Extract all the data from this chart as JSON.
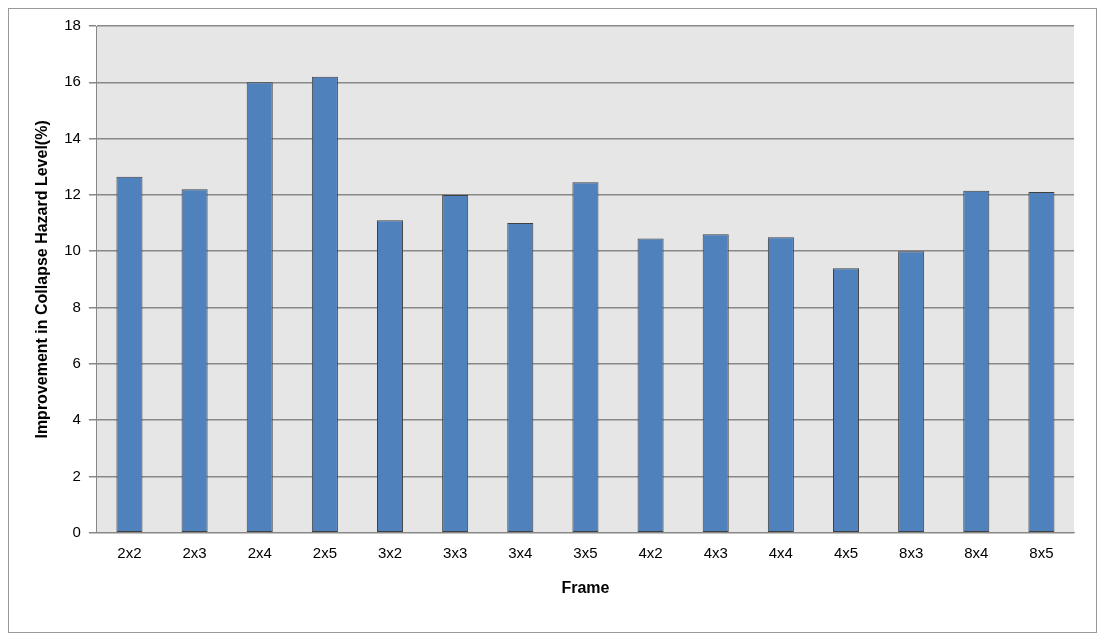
{
  "chart_data": {
    "type": "bar",
    "xlabel": "Frame",
    "ylabel": "Improvement in Collapse Hazard Level(%)",
    "categories": [
      "2x2",
      "2x3",
      "2x4",
      "2x5",
      "3x2",
      "3x3",
      "3x4",
      "3x5",
      "4x2",
      "4x3",
      "4x4",
      "4x5",
      "8x3",
      "8x4",
      "8x5"
    ],
    "values": [
      12.65,
      12.2,
      16.0,
      16.2,
      11.1,
      12.0,
      11.0,
      12.45,
      10.45,
      10.6,
      10.5,
      9.4,
      10.0,
      12.15,
      12.1
    ],
    "color": "#4f81bd",
    "ylim": [
      0,
      18
    ],
    "yticks": [
      0,
      2,
      4,
      6,
      8,
      10,
      12,
      14,
      16,
      18
    ],
    "grid": "y",
    "legend": false
  }
}
